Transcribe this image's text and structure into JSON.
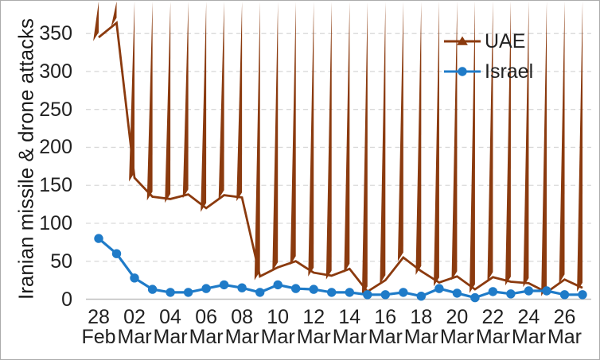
{
  "figure": {
    "background": "#FFFFFF",
    "border_color": "#ABABAB"
  },
  "colors": {
    "gridline": "#D9D9D9",
    "axis_line": "#BFBFBF",
    "text": "#212121"
  },
  "chart_data": {
    "type": "line",
    "title": "",
    "ylabel": "Iranian missile & drone attacks",
    "xlabel": "",
    "ylim": [
      0,
      372
    ],
    "yticks": [
      0,
      50,
      100,
      150,
      200,
      250,
      300,
      350
    ],
    "grid": "horizontal dashed gridlines at 50-unit intervals",
    "legend_position": "top-right inside plot",
    "categories": [
      "28 Feb",
      "01 Mar",
      "02 Mar",
      "03 Mar",
      "04 Mar",
      "05 Mar",
      "06 Mar",
      "07 Mar",
      "08 Mar",
      "09 Mar",
      "10 Mar",
      "11 Mar",
      "12 Mar",
      "13 Mar",
      "14 Mar",
      "15 Mar",
      "16 Mar",
      "17 Mar",
      "18 Mar",
      "19 Mar",
      "20 Mar",
      "21 Mar",
      "22 Mar",
      "23 Mar",
      "24 Mar",
      "25 Mar",
      "26 Mar",
      "27 Mar"
    ],
    "series": [
      {
        "name": "UAE",
        "color": "#8B3A0E",
        "marker": "triangle",
        "values": [
          345,
          364,
          160,
          135,
          132,
          138,
          120,
          137,
          134,
          30,
          42,
          50,
          35,
          31,
          40,
          10,
          25,
          55,
          37,
          22,
          30,
          13,
          29,
          23,
          21,
          9,
          26,
          15
        ]
      },
      {
        "name": "Israel",
        "color": "#1F7BC8",
        "marker": "circle",
        "values": [
          80,
          60,
          28,
          13,
          9,
          9,
          14,
          19,
          15,
          9,
          19,
          14,
          13,
          9,
          9,
          6,
          6,
          9,
          4,
          14,
          8,
          2,
          10,
          7,
          11,
          11,
          6,
          6
        ]
      }
    ],
    "x_ticks": [
      {
        "idx": 0,
        "day": "28",
        "month": "Feb"
      },
      {
        "idx": 2,
        "day": "02",
        "month": "Mar"
      },
      {
        "idx": 4,
        "day": "04",
        "month": "Mar"
      },
      {
        "idx": 6,
        "day": "06",
        "month": "Mar"
      },
      {
        "idx": 8,
        "day": "08",
        "month": "Mar"
      },
      {
        "idx": 10,
        "day": "10",
        "month": "Mar"
      },
      {
        "idx": 12,
        "day": "12",
        "month": "Mar"
      },
      {
        "idx": 14,
        "day": "14",
        "month": "Mar"
      },
      {
        "idx": 16,
        "day": "16",
        "month": "Mar"
      },
      {
        "idx": 18,
        "day": "18",
        "month": "Mar"
      },
      {
        "idx": 20,
        "day": "20",
        "month": "Mar"
      },
      {
        "idx": 22,
        "day": "22",
        "month": "Mar"
      },
      {
        "idx": 24,
        "day": "24",
        "month": "Mar"
      },
      {
        "idx": 26,
        "day": "26",
        "month": "Mar"
      }
    ]
  }
}
